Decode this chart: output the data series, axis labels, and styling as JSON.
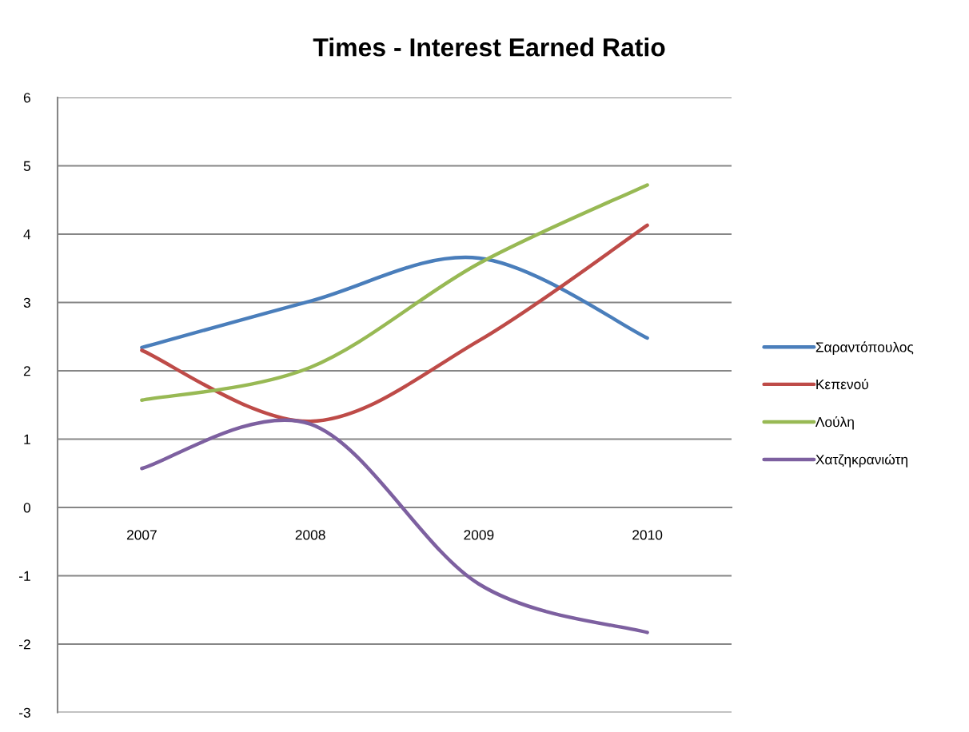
{
  "chart_data": {
    "type": "line",
    "title": "Times - Interest Earned Ratio",
    "categories": [
      "2007",
      "2008",
      "2009",
      "2010"
    ],
    "series": [
      {
        "name": "Σαραντόπουλος",
        "color": "#4a7ebb",
        "values": [
          2.34,
          3.02,
          3.65,
          2.48
        ]
      },
      {
        "name": "Κεπενού",
        "color": "#be4b48",
        "values": [
          2.3,
          1.26,
          2.44,
          4.13
        ]
      },
      {
        "name": "Λούλη",
        "color": "#98b954",
        "values": [
          1.57,
          2.05,
          3.57,
          4.72
        ]
      },
      {
        "name": "Χατζηκρανιώτη",
        "color": "#7d60a0",
        "values": [
          0.57,
          1.22,
          -1.12,
          -1.83
        ]
      }
    ],
    "ylim": [
      -3,
      6
    ],
    "yticks": [
      -3,
      -2,
      -1,
      0,
      1,
      2,
      3,
      4,
      5,
      6
    ],
    "grid": "y",
    "legend": "right",
    "marker": "none",
    "line_style": "solid"
  }
}
